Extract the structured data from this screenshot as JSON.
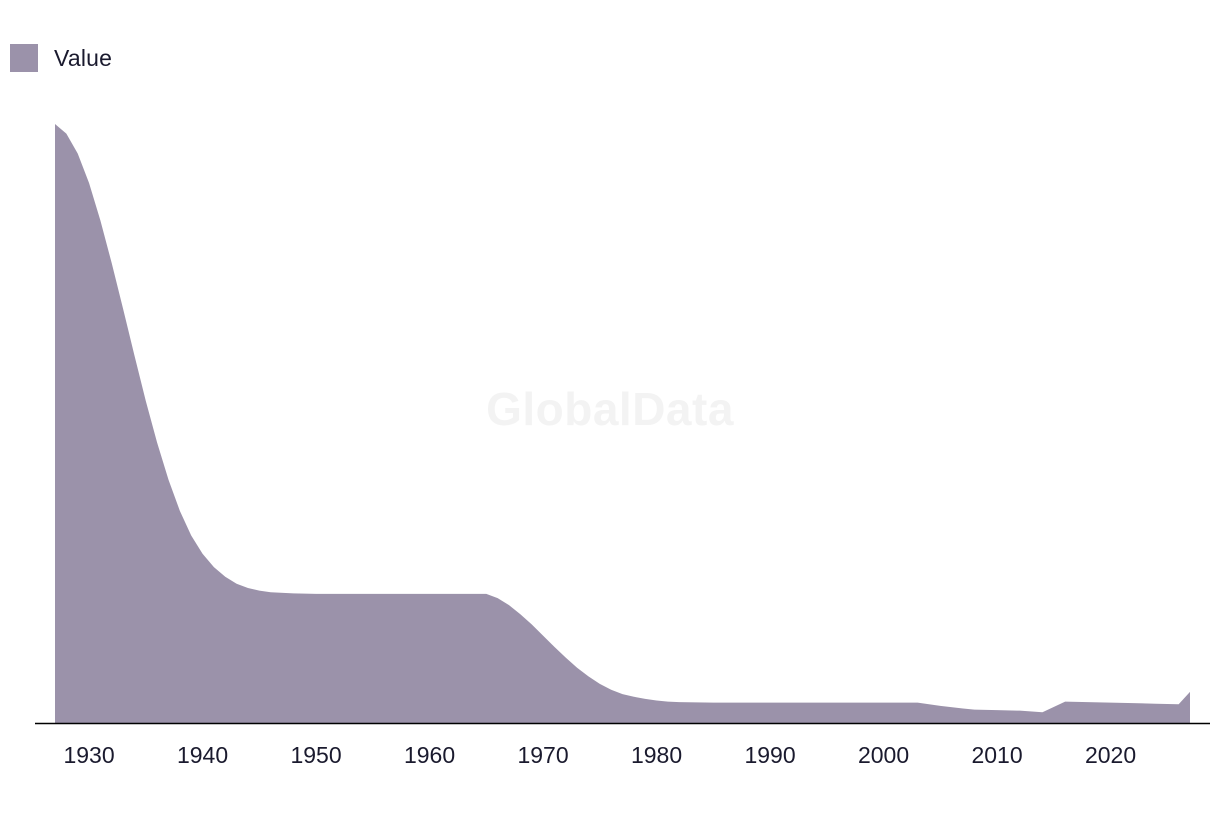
{
  "chart_data": {
    "type": "area",
    "title": "",
    "xlabel": "",
    "ylabel": "",
    "series": [
      {
        "name": "Value",
        "x": [
          1927,
          1928,
          1929,
          1930,
          1931,
          1932,
          1933,
          1934,
          1935,
          1936,
          1937,
          1938,
          1939,
          1940,
          1941,
          1942,
          1943,
          1944,
          1945,
          1946,
          1948,
          1950,
          1955,
          1960,
          1965,
          1966,
          1967,
          1968,
          1969,
          1970,
          1971,
          1972,
          1973,
          1974,
          1975,
          1976,
          1977,
          1978,
          1979,
          1980,
          1981,
          1982,
          1985,
          1990,
          1995,
          2000,
          2003,
          2005,
          2007,
          2008,
          2010,
          2012,
          2014,
          2016,
          2018,
          2020,
          2022,
          2024,
          2026,
          2027
        ],
        "values": [
          100,
          98.2,
          94.5,
          89,
          82,
          74,
          65.5,
          56.8,
          48.3,
          40.5,
          33.6,
          27.8,
          23.2,
          19.8,
          17.3,
          15.5,
          14.2,
          13.4,
          12.9,
          12.6,
          12.4,
          12.3,
          12.3,
          12.3,
          12.3,
          11.5,
          10.2,
          8.5,
          6.6,
          4.5,
          2.4,
          0.4,
          -1.5,
          -3.1,
          -4.5,
          -5.6,
          -6.4,
          -6.9,
          -7.3,
          -7.6,
          -7.8,
          -7.9,
          -8,
          -8,
          -8,
          -8,
          -8,
          -8.6,
          -9.1,
          -9.3,
          -9.4,
          -9.5,
          -9.8,
          -7.8,
          -7.9,
          -8,
          -8.1,
          -8.2,
          -8.3,
          -6
        ],
        "color": "#9b92aa"
      }
    ],
    "x_ticks": [
      "1930",
      "1940",
      "1950",
      "1960",
      "1970",
      "1980",
      "1990",
      "2000",
      "2010",
      "2020"
    ],
    "xlim": [
      1927,
      2027
    ],
    "ylim": [
      -11.8,
      100
    ],
    "grid": false,
    "legend": {
      "position": "top-left",
      "label": "Value"
    },
    "axis_color": "#000000"
  },
  "watermark": "GlobalData"
}
